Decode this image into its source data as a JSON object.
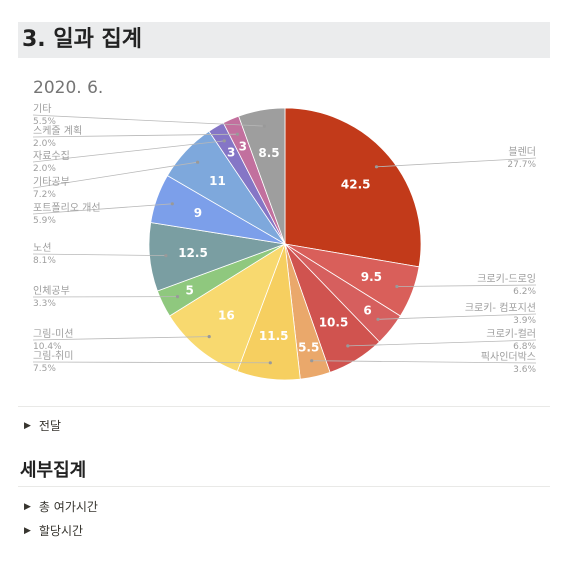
{
  "page": {
    "section_heading": "3. 일과 집계",
    "toggle_1": "전달",
    "sub_heading": "세부집계",
    "toggle_2": "총 여가시간",
    "toggle_3": "할당시간"
  },
  "chart_data": {
    "type": "pie",
    "title": "2020. 6.",
    "slices": [
      {
        "label": "블렌더",
        "value": 42.5,
        "percent": "27.7%",
        "color": "#c23a1a"
      },
      {
        "label": "크로키-드로잉",
        "value": 9.5,
        "percent": "6.2%",
        "color": "#d95f5a"
      },
      {
        "label": "크로키- 컴포지션",
        "value": 6,
        "percent": "3.9%",
        "color": "#d65f5e"
      },
      {
        "label": "크로키-컬러",
        "value": 10.5,
        "percent": "6.8%",
        "color": "#d0534f"
      },
      {
        "label": "픽사인더박스",
        "value": 5.5,
        "percent": "3.6%",
        "color": "#eaa86b"
      },
      {
        "label": "그림-취미",
        "value": 11.5,
        "percent": "7.5%",
        "color": "#f6cf60"
      },
      {
        "label": "그림-미션",
        "value": 16,
        "percent": "10.4%",
        "color": "#f8d96f"
      },
      {
        "label": "인체공부",
        "value": 5,
        "percent": "3.3%",
        "color": "#8fc87e"
      },
      {
        "label": "노션",
        "value": 12.5,
        "percent": "8.1%",
        "color": "#7a9ea2"
      },
      {
        "label": "포트폴리오 개선",
        "value": 9,
        "percent": "5.9%",
        "color": "#7c9fea"
      },
      {
        "label": "기타공부",
        "value": 11,
        "percent": "7.2%",
        "color": "#7ea8dc"
      },
      {
        "label": "자료수집",
        "value": 3,
        "percent": "2.0%",
        "color": "#8576c6"
      },
      {
        "label": "스케줄 계획",
        "value": 3,
        "percent": "2.0%",
        "color": "#c2709e"
      },
      {
        "label": "기타",
        "value": 8.5,
        "percent": "5.5%",
        "color": "#9e9e9e"
      }
    ]
  }
}
